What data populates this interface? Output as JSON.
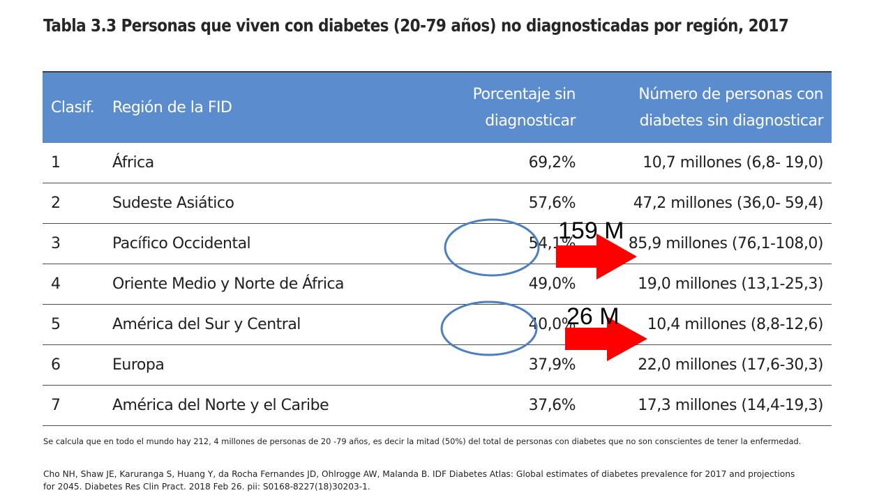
{
  "title": "Tabla 3.3 Personas que viven con diabetes (20-79 años) no diagnosticadas por región, 2017",
  "table": {
    "headers": {
      "rank": "Clasif.",
      "region": "Región de la FID",
      "pct_line1": "Porcentaje sin",
      "pct_line2": "diagnosticar",
      "num_line1": "Número de personas con",
      "num_line2": "diabetes sin diagnosticar"
    },
    "rows": [
      {
        "rank": "1",
        "region": "África",
        "pct": "69,2%",
        "num": "10,7 millones (6,8- 19,0)"
      },
      {
        "rank": "2",
        "region": "Sudeste Asiático",
        "pct": "57,6%",
        "num": "47,2 millones (36,0- 59,4)"
      },
      {
        "rank": "3",
        "region": "Pacífico Occidental",
        "pct": "54,1%",
        "num": "85,9 millones (76,1-108,0)"
      },
      {
        "rank": "4",
        "region": "Oriente Medio y Norte de África",
        "pct": "49,0%",
        "num": "19,0 millones (13,1-25,3)"
      },
      {
        "rank": "5",
        "region": "América del Sur y Central",
        "pct": "40,0%",
        "num": "10,4 millones (8,8-12,6)"
      },
      {
        "rank": "6",
        "region": "Europa",
        "pct": "37,9%",
        "num": "22,0 millones (17,6-30,3)"
      },
      {
        "rank": "7",
        "region": "América del Norte y el Caribe",
        "pct": "37,6%",
        "num": "17,3 millones (14,4-19,3)"
      }
    ]
  },
  "annotations": {
    "label_1": "159 M",
    "label_2": "26 M",
    "circle_color": "#4a7fc1",
    "arrow_color": "#ff0000"
  },
  "note": "Se calcula que en todo el mundo hay 212, 4 millones de personas  de 20 -79 años, es decir la mitad (50%) del total de personas con diabetes que no son conscientes de tener la enfermedad.",
  "citation_line1": "Cho NH, Shaw JE, Karuranga S, Huang Y, da Rocha Fernandes JD, Ohlrogge AW, Malanda B. IDF Diabetes Atlas: Global estimates of diabetes prevalence for 2017 and projections",
  "citation_line2": "for 2045. Diabetes Res Clin Pract. 2018 Feb 26. pii: S0168-8227(18)30203-1."
}
